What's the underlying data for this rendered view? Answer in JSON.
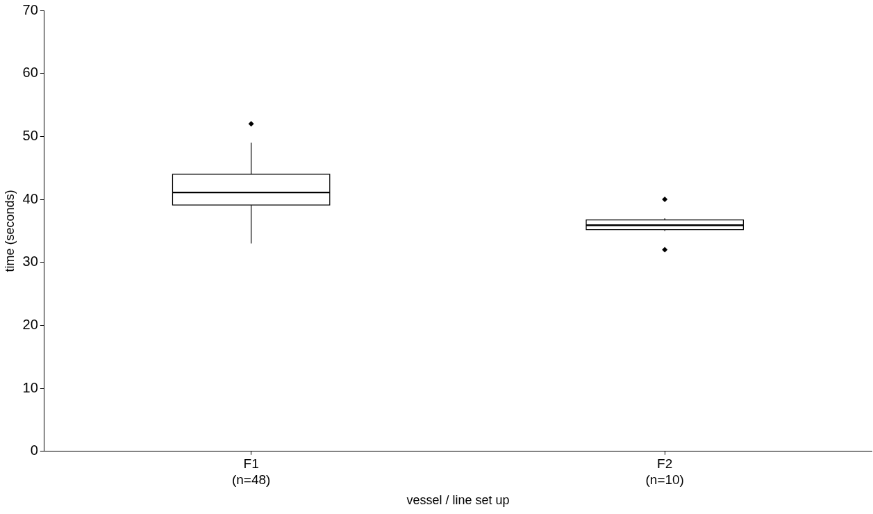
{
  "chart_data": {
    "type": "box",
    "xlabel": "vessel / line set up",
    "ylabel": "time (seconds)",
    "categories": [
      "F1\n(n=48)",
      "F2\n(n=10)"
    ],
    "boxes": [
      {
        "low": 33,
        "q1": 39.1,
        "median": 41.1,
        "q3": 44,
        "high": 49,
        "outliers": [
          52
        ]
      },
      {
        "low": 35,
        "q1": 35.2,
        "median": 35.9,
        "q3": 36.75,
        "high": 37,
        "outliers": [
          40,
          32
        ]
      }
    ],
    "ylim": [
      0,
      70
    ],
    "yticks": [
      0,
      10,
      20,
      30,
      40,
      50,
      60,
      70
    ],
    "grid": false,
    "legend": false
  }
}
